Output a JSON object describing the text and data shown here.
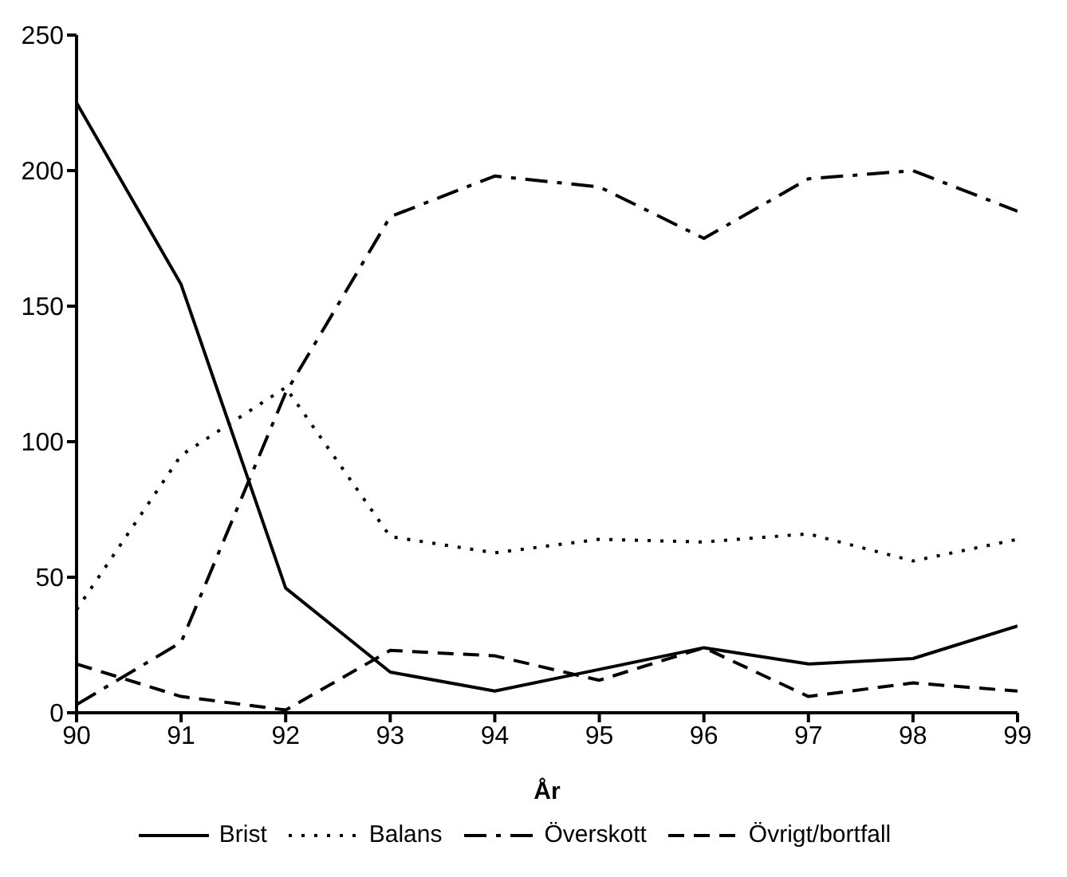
{
  "chart_data": {
    "type": "line",
    "xlabel": "År",
    "x": [
      90,
      91,
      92,
      93,
      94,
      95,
      96,
      97,
      98,
      99
    ],
    "xlim": [
      90,
      99
    ],
    "xticks": [
      90,
      91,
      92,
      93,
      94,
      95,
      96,
      97,
      98,
      99
    ],
    "ylim": [
      0,
      250
    ],
    "yticks": [
      0,
      50,
      100,
      150,
      200,
      250
    ],
    "grid": false,
    "legend": "bottom",
    "marker": "none",
    "series": [
      {
        "name": "Brist",
        "color": "#000000",
        "line_style": "solid",
        "values": [
          225,
          158,
          46,
          15,
          8,
          16,
          24,
          18,
          20,
          32
        ]
      },
      {
        "name": "Balans",
        "color": "#000000",
        "line_style": "dotted",
        "values": [
          38,
          95,
          120,
          65,
          59,
          64,
          63,
          66,
          56,
          64
        ]
      },
      {
        "name": "Överskott",
        "color": "#000000",
        "line_style": "dashdot",
        "values": [
          3,
          26,
          118,
          183,
          198,
          194,
          175,
          197,
          200,
          185
        ]
      },
      {
        "name": "Övrigt/bortfall",
        "color": "#000000",
        "line_style": "dashed",
        "values": [
          18,
          6,
          1,
          23,
          21,
          12,
          24,
          6,
          11,
          8
        ]
      }
    ]
  }
}
